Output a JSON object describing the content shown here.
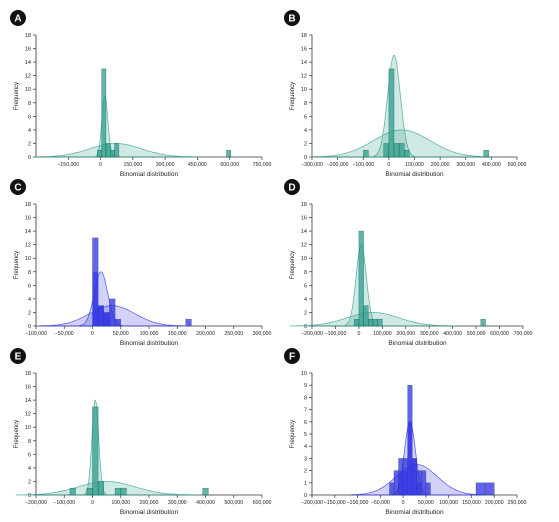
{
  "figure": {
    "colors": {
      "teal": "#2a9d8a",
      "blue": "#2f2fe8",
      "badge": "#111111",
      "axis": "#333333",
      "text": "#222222"
    },
    "panels": [
      {
        "letter": "A",
        "color": "teal",
        "xlabel": "Binomial distribution",
        "ylabel": "Frequency",
        "xlim": [
          -300000,
          750000
        ],
        "ylim": [
          0,
          18
        ],
        "xticks": [
          -150000,
          0,
          150000,
          300000,
          450000,
          600000,
          750000
        ],
        "xticklabels": [
          "−150,000",
          "0",
          "150,000",
          "300,000",
          "450,000",
          "600,000",
          "750,000"
        ],
        "yticks": [
          0,
          2,
          4,
          6,
          8,
          10,
          12,
          14,
          16,
          18
        ],
        "bars": [
          [
            -15000,
            5000,
            1
          ],
          [
            5000,
            25000,
            13
          ],
          [
            25000,
            45000,
            2
          ],
          [
            45000,
            65000,
            1
          ],
          [
            65000,
            85000,
            2
          ],
          [
            585000,
            605000,
            1
          ]
        ],
        "curves": [
          {
            "mean": 20000,
            "sd": 14000,
            "peak": 9
          },
          {
            "mean": 70000,
            "sd": 120000,
            "peak": 2
          }
        ],
        "overlays": []
      },
      {
        "letter": "B",
        "color": "teal",
        "xlabel": "Binomial distribution",
        "ylabel": "Frequency",
        "xlim": [
          -300000,
          500000
        ],
        "ylim": [
          0,
          18
        ],
        "xticks": [
          -300000,
          -200000,
          -100000,
          0,
          100000,
          200000,
          300000,
          400000,
          500000
        ],
        "xticklabels": [
          "−300,000",
          "−200,000",
          "−100,000",
          "0",
          "100,000",
          "200,000",
          "300,000",
          "400,000",
          "500,000"
        ],
        "yticks": [
          0,
          2,
          4,
          6,
          8,
          10,
          12,
          14,
          16,
          18
        ],
        "bars": [
          [
            -100000,
            -80000,
            1
          ],
          [
            -20000,
            0,
            2
          ],
          [
            0,
            20000,
            13
          ],
          [
            20000,
            40000,
            2
          ],
          [
            40000,
            60000,
            2
          ],
          [
            60000,
            80000,
            1
          ],
          [
            370000,
            390000,
            1
          ]
        ],
        "curves": [
          {
            "mean": 20000,
            "sd": 25000,
            "peak": 15
          },
          {
            "mean": 50000,
            "sd": 110000,
            "peak": 4
          }
        ],
        "overlays": []
      },
      {
        "letter": "C",
        "color": "blue",
        "xlabel": "Binomial distribution",
        "ylabel": "Frequency",
        "xlim": [
          -100000,
          300000
        ],
        "ylim": [
          0,
          18
        ],
        "xticks": [
          -100000,
          -50000,
          0,
          50000,
          100000,
          150000,
          200000,
          250000,
          300000
        ],
        "xticklabels": [
          "−100,000",
          "−50,000",
          "0",
          "50,000",
          "100,000",
          "150,000",
          "200,000",
          "250,000",
          "300,000"
        ],
        "yticks": [
          0,
          2,
          4,
          6,
          8,
          10,
          12,
          14,
          16,
          18
        ],
        "bars": [
          [
            0,
            10000,
            13
          ],
          [
            10000,
            20000,
            3
          ],
          [
            20000,
            30000,
            2
          ],
          [
            30000,
            40000,
            4
          ],
          [
            40000,
            50000,
            1
          ],
          [
            165000,
            175000,
            1
          ]
        ],
        "curves": [
          {
            "mean": 15000,
            "sd": 12000,
            "peak": 8
          },
          {
            "mean": 35000,
            "sd": 40000,
            "peak": 3
          }
        ],
        "overlays": [
          [
            0,
            10000,
            8
          ],
          [
            10000,
            20000,
            3
          ],
          [
            20000,
            30000,
            2
          ]
        ]
      },
      {
        "letter": "D",
        "color": "teal",
        "xlabel": "Binomial distribution",
        "ylabel": "Frequency",
        "xlim": [
          -200000,
          700000
        ],
        "ylim": [
          0,
          18
        ],
        "xticks": [
          -200000,
          -100000,
          0,
          100000,
          200000,
          300000,
          400000,
          500000,
          600000,
          700000
        ],
        "xticklabels": [
          "−200,000",
          "−100,000",
          "0",
          "100,000",
          "200,000",
          "300,000",
          "400,000",
          "500,000",
          "600,000",
          "700,000"
        ],
        "yticks": [
          0,
          2,
          4,
          6,
          8,
          10,
          12,
          14,
          16,
          18
        ],
        "bars": [
          [
            -20000,
            0,
            1
          ],
          [
            0,
            20000,
            14
          ],
          [
            20000,
            40000,
            3
          ],
          [
            40000,
            60000,
            1
          ],
          [
            60000,
            80000,
            1
          ],
          [
            80000,
            100000,
            1
          ],
          [
            520000,
            540000,
            1
          ]
        ],
        "curves": [
          {
            "mean": 10000,
            "sd": 22000,
            "peak": 12
          },
          {
            "mean": 60000,
            "sd": 110000,
            "peak": 2
          }
        ],
        "overlays": []
      },
      {
        "letter": "E",
        "color": "teal",
        "xlabel": "Binomial distribution",
        "ylabel": "Frequency",
        "xlim": [
          -200000,
          600000
        ],
        "ylim": [
          0,
          18
        ],
        "xticks": [
          -200000,
          -100000,
          0,
          100000,
          200000,
          300000,
          400000,
          500000,
          600000
        ],
        "xticklabels": [
          "−200,000",
          "−100,000",
          "0",
          "100,000",
          "200,000",
          "300,000",
          "400,000",
          "500,000",
          "600,000"
        ],
        "yticks": [
          0,
          2,
          4,
          6,
          8,
          10,
          12,
          14,
          16,
          18
        ],
        "bars": [
          [
            -80000,
            -60000,
            1
          ],
          [
            -20000,
            0,
            1
          ],
          [
            0,
            20000,
            13
          ],
          [
            20000,
            40000,
            2
          ],
          [
            80000,
            100000,
            1
          ],
          [
            100000,
            120000,
            1
          ],
          [
            390000,
            410000,
            1
          ]
        ],
        "curves": [
          {
            "mean": 10000,
            "sd": 12000,
            "peak": 14
          },
          {
            "mean": 50000,
            "sd": 100000,
            "peak": 2
          }
        ],
        "overlays": []
      },
      {
        "letter": "F",
        "color": "blue",
        "xlabel": "Binomial distribution",
        "ylabel": "Frequency",
        "xlim": [
          -200000,
          250000
        ],
        "ylim": [
          0,
          10
        ],
        "xticks": [
          -200000,
          -150000,
          -100000,
          -50000,
          0,
          50000,
          100000,
          150000,
          200000,
          250000
        ],
        "xticklabels": [
          "−200,000",
          "−150,000",
          "−100,000",
          "−50,000",
          "0",
          "50,000",
          "100,000",
          "150,000",
          "200,000",
          "250,000"
        ],
        "yticks": [
          0,
          1,
          2,
          3,
          4,
          5,
          6,
          7,
          8,
          9,
          10
        ],
        "bars": [
          [
            -30000,
            -20000,
            1
          ],
          [
            -20000,
            -10000,
            2
          ],
          [
            -10000,
            0,
            3
          ],
          [
            0,
            10000,
            3
          ],
          [
            10000,
            20000,
            9
          ],
          [
            20000,
            30000,
            3
          ],
          [
            30000,
            40000,
            2
          ],
          [
            40000,
            50000,
            2
          ],
          [
            50000,
            60000,
            1
          ],
          [
            160000,
            180000,
            1
          ],
          [
            180000,
            200000,
            1
          ]
        ],
        "curves": [
          {
            "mean": 15000,
            "sd": 12000,
            "peak": 6
          },
          {
            "mean": 30000,
            "sd": 45000,
            "peak": 2.5
          }
        ],
        "overlays": [
          [
            -10000,
            0,
            2
          ],
          [
            0,
            10000,
            2
          ],
          [
            10000,
            20000,
            6
          ],
          [
            20000,
            30000,
            3
          ],
          [
            30000,
            40000,
            1
          ]
        ]
      }
    ]
  }
}
